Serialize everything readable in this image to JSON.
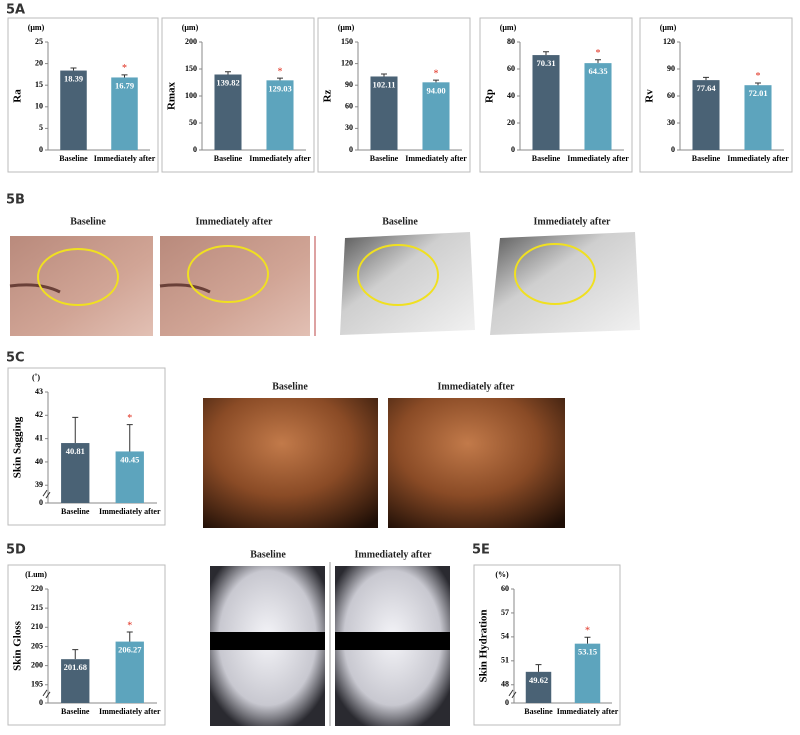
{
  "panel_labels": [
    "5A",
    "5B",
    "5C",
    "5D",
    "5E"
  ],
  "image_captions": {
    "5B": [
      "Baseline",
      "Immediately after",
      "Baseline",
      "Immediately after"
    ],
    "5C": [
      "Baseline",
      "Immediately after"
    ],
    "5D": [
      "Baseline",
      "Immediately after"
    ]
  },
  "chart_data": [
    {
      "type": "bar",
      "y_label": "Ra",
      "unit": "(μm)",
      "categories": [
        "Baseline",
        "Immediately after"
      ],
      "values": [
        18.39,
        16.79
      ],
      "errors": [
        0.6,
        0.6
      ],
      "colors": [
        "#4a6275",
        "#5da4bd"
      ],
      "ylim": [
        0,
        25
      ],
      "yticks": [
        0,
        5,
        10,
        15,
        20,
        25
      ],
      "significant": [
        false,
        true
      ],
      "significance_marker": "*"
    },
    {
      "type": "bar",
      "y_label": "Rmax",
      "unit": "(μm)",
      "categories": [
        "Baseline",
        "Immediately after"
      ],
      "values": [
        139.82,
        129.03
      ],
      "errors": [
        5,
        4
      ],
      "colors": [
        "#4a6275",
        "#5da4bd"
      ],
      "ylim": [
        0,
        200
      ],
      "yticks": [
        0,
        50,
        100,
        150,
        200
      ],
      "significant": [
        false,
        true
      ],
      "significance_marker": "*"
    },
    {
      "type": "bar",
      "y_label": "Rz",
      "unit": "(μm)",
      "categories": [
        "Baseline",
        "Immediately after"
      ],
      "values": [
        102.11,
        94.0
      ],
      "value_labels": [
        "102.11",
        "94.00"
      ],
      "errors": [
        3.5,
        3
      ],
      "colors": [
        "#4a6275",
        "#5da4bd"
      ],
      "ylim": [
        0,
        150
      ],
      "yticks": [
        0,
        30,
        60,
        90,
        120,
        150
      ],
      "significant": [
        false,
        true
      ],
      "significance_marker": "*"
    },
    {
      "type": "bar",
      "y_label": "Rp",
      "unit": "(μm)",
      "categories": [
        "Baseline",
        "Immediately after"
      ],
      "values": [
        70.31,
        64.35
      ],
      "errors": [
        2.5,
        2.5
      ],
      "colors": [
        "#4a6275",
        "#5da4bd"
      ],
      "ylim": [
        0,
        80
      ],
      "yticks": [
        0,
        20,
        40,
        60,
        80
      ],
      "significant": [
        false,
        true
      ],
      "significance_marker": "*"
    },
    {
      "type": "bar",
      "y_label": "Rv",
      "unit": "(μm)",
      "categories": [
        "Baseline",
        "Immediately after"
      ],
      "values": [
        77.64,
        72.01
      ],
      "errors": [
        3,
        2.5
      ],
      "colors": [
        "#4a6275",
        "#5da4bd"
      ],
      "ylim": [
        0,
        120
      ],
      "yticks": [
        0,
        30,
        60,
        90,
        120
      ],
      "significant": [
        false,
        true
      ],
      "significance_marker": "*"
    },
    {
      "type": "bar",
      "y_label": "Skin Sagging",
      "unit": "(˚)",
      "categories": [
        "Baseline",
        "Immediately after"
      ],
      "values": [
        40.81,
        40.45
      ],
      "errors": [
        1.1,
        1.15
      ],
      "colors": [
        "#4a6275",
        "#5da4bd"
      ],
      "ylim": [
        39,
        43
      ],
      "yticks": [
        39,
        40,
        41,
        42,
        43
      ],
      "axis_break": true,
      "break_tick": 0,
      "significant": [
        false,
        true
      ],
      "significance_marker": "*"
    },
    {
      "type": "bar",
      "y_label": "Skin Gloss",
      "unit": "(Lum)",
      "categories": [
        "Baseline",
        "Immediately after"
      ],
      "values": [
        201.68,
        206.27
      ],
      "errors": [
        2.5,
        2.5
      ],
      "colors": [
        "#4a6275",
        "#5da4bd"
      ],
      "ylim": [
        195,
        220
      ],
      "yticks": [
        195,
        200,
        205,
        210,
        215,
        220
      ],
      "axis_break": true,
      "break_tick": 0,
      "significant": [
        false,
        true
      ],
      "significance_marker": "*"
    },
    {
      "type": "bar",
      "y_label": "Skin Hydration",
      "unit": "(%)",
      "categories": [
        "Baseline",
        "Immediately after"
      ],
      "values": [
        49.62,
        53.15
      ],
      "errors": [
        0.9,
        0.8
      ],
      "colors": [
        "#4a6275",
        "#5da4bd"
      ],
      "ylim": [
        48,
        60
      ],
      "yticks": [
        48,
        51,
        54,
        57,
        60
      ],
      "axis_break": true,
      "break_tick": 0,
      "significant": [
        false,
        true
      ],
      "significance_marker": "*"
    }
  ]
}
